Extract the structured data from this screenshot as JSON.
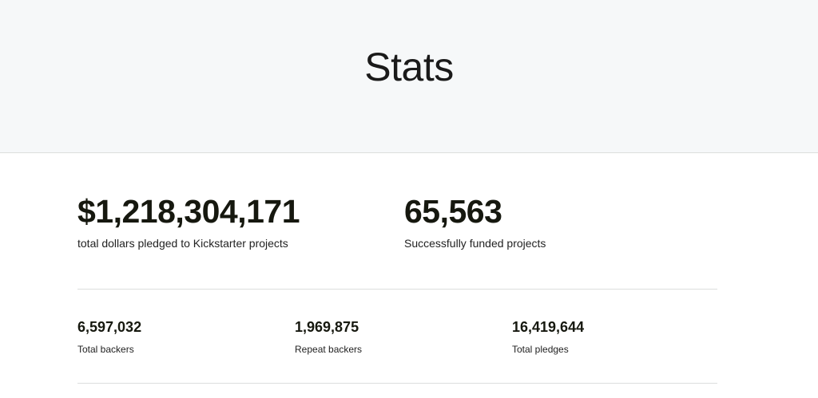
{
  "header": {
    "title": "Stats"
  },
  "primary_stats": [
    {
      "value": "$1,218,304,171",
      "label": "total dollars pledged to Kickstarter projects"
    },
    {
      "value": "65,563",
      "label": "Successfully funded projects"
    }
  ],
  "secondary_stats": [
    {
      "value": "6,597,032",
      "label": "Total backers"
    },
    {
      "value": "1,969,875",
      "label": "Repeat backers"
    },
    {
      "value": "16,419,644",
      "label": "Total pledges"
    }
  ],
  "colors": {
    "hero_background": "#f6f8f9",
    "text": "#1a1a1a",
    "divider": "#dcdedd"
  }
}
